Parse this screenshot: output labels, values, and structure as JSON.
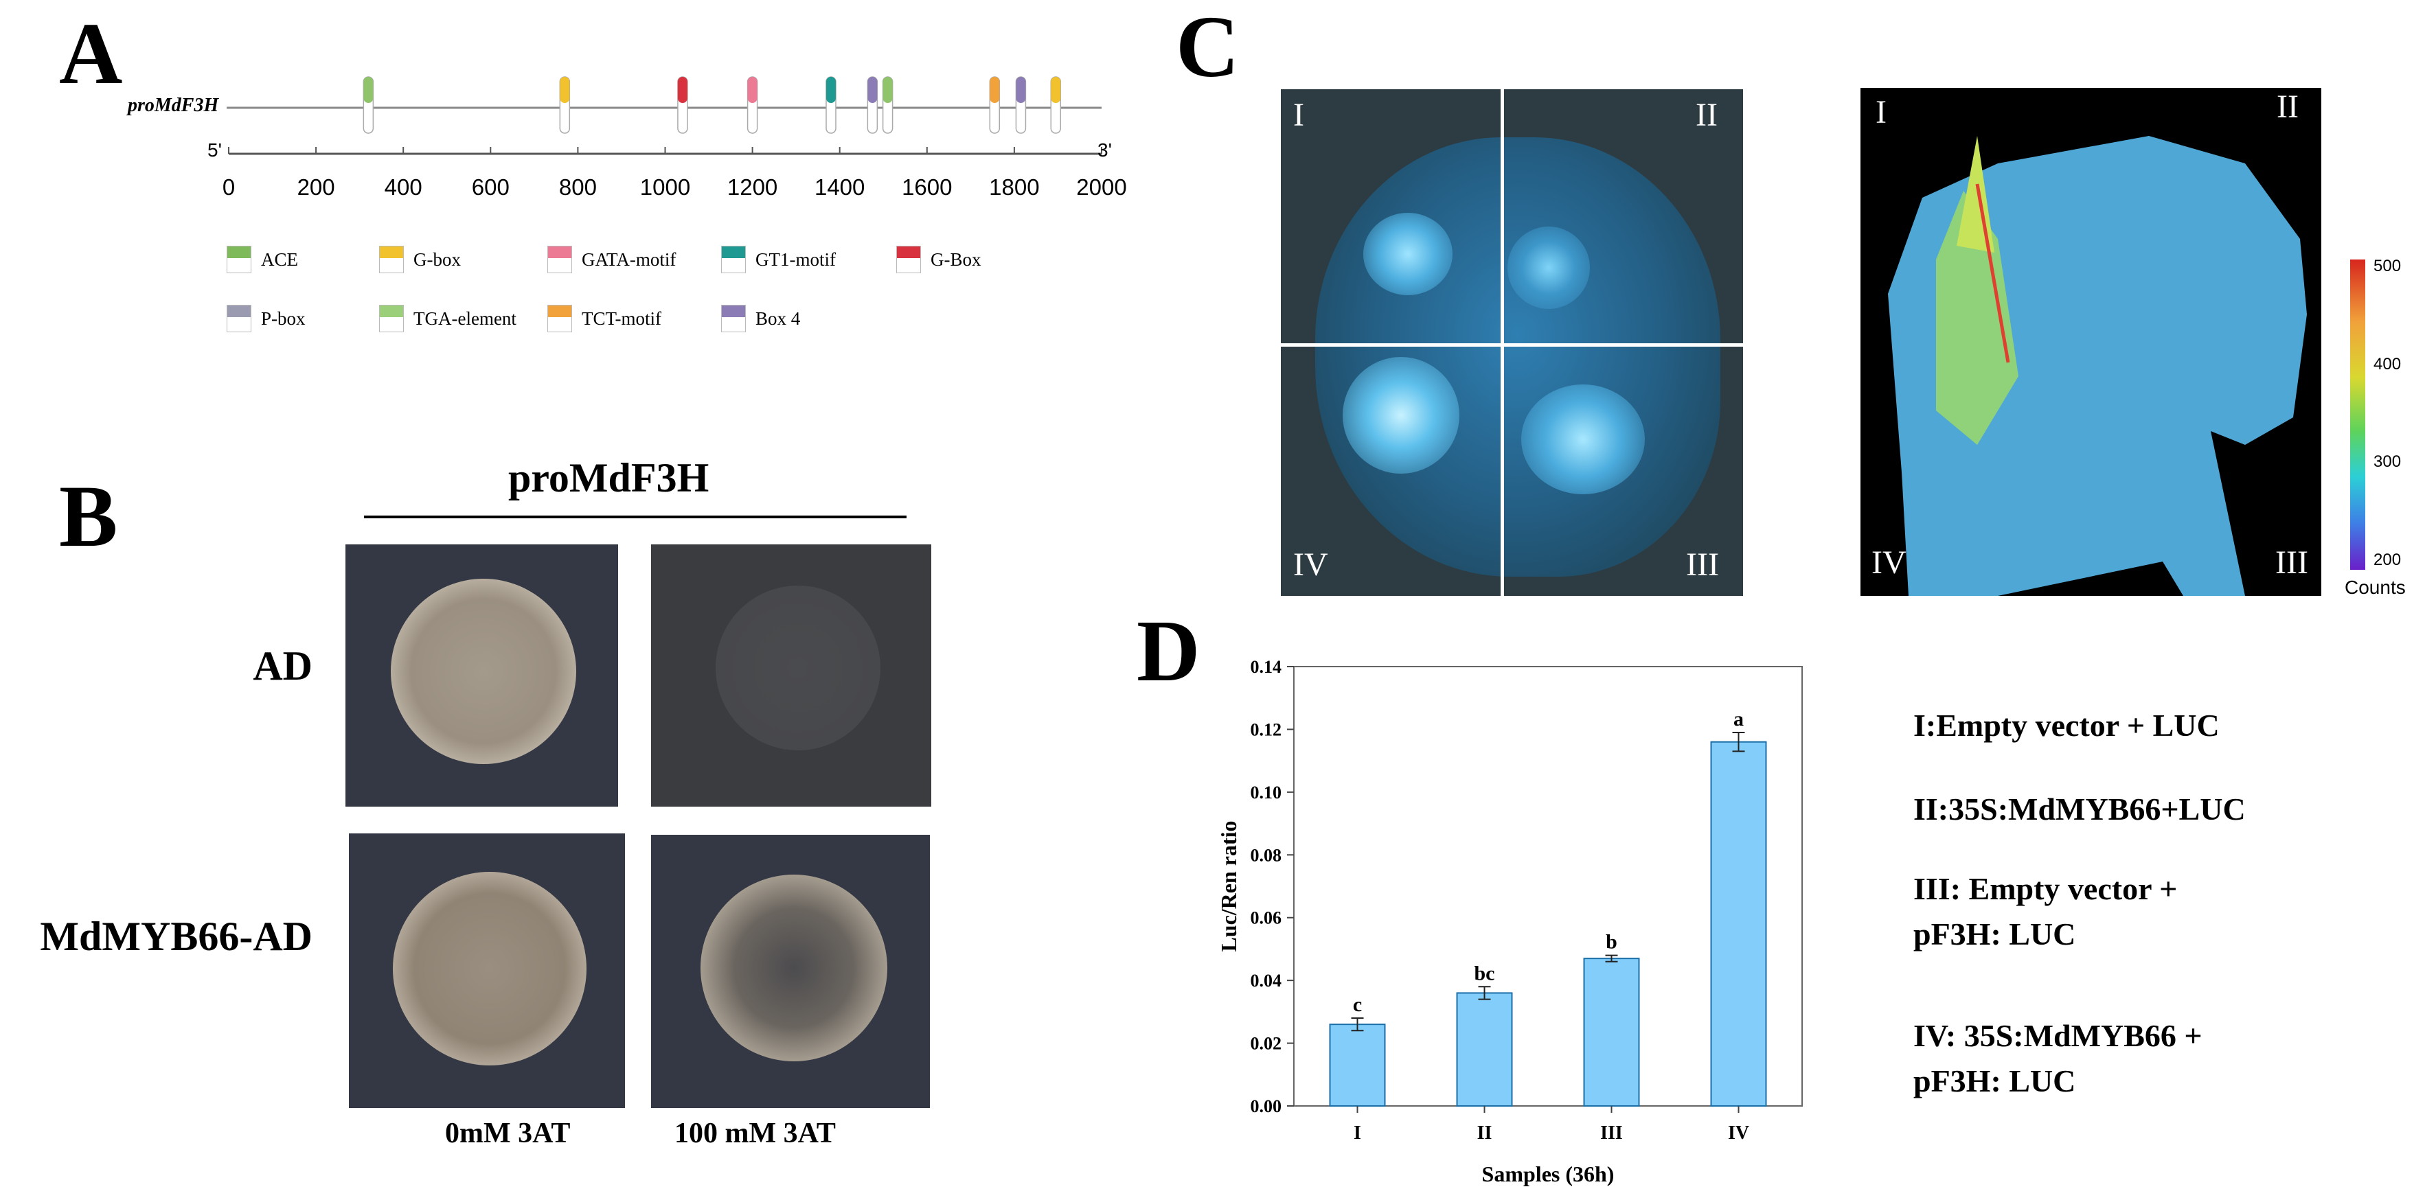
{
  "panels": {
    "a": "A",
    "b": "B",
    "c": "C",
    "d": "D"
  },
  "panel_a": {
    "gene_label": "proMdF3H",
    "end5": "5'",
    "end3": "3'",
    "axis_ticks": [
      "0",
      "200",
      "400",
      "600",
      "800",
      "1000",
      "1200",
      "1400",
      "1600",
      "1800",
      "2000"
    ],
    "elements": [
      {
        "type": "ACE",
        "pos": 320,
        "color": "#8fc46a"
      },
      {
        "type": "G-box",
        "pos": 770,
        "color": "#f2c12e"
      },
      {
        "type": "G-Box",
        "pos": 1040,
        "color": "#d9323f"
      },
      {
        "type": "GATA-motif",
        "pos": 1200,
        "color": "#ec7a95"
      },
      {
        "type": "GT1-motif",
        "pos": 1380,
        "color": "#1e9a92"
      },
      {
        "type": "Box 4",
        "pos": 1475,
        "color": "#8b7cb5"
      },
      {
        "type": "TGA-element",
        "pos": 1510,
        "color": "#8fc46a"
      },
      {
        "type": "TCT-motif",
        "pos": 1755,
        "color": "#f2a23a"
      },
      {
        "type": "Box 4",
        "pos": 1815,
        "color": "#8b7cb5"
      },
      {
        "type": "G-box",
        "pos": 1895,
        "color": "#f2c12e"
      }
    ],
    "legend": [
      {
        "label": "ACE",
        "color": "#7fba5a"
      },
      {
        "label": "G-box",
        "color": "#f2c12e"
      },
      {
        "label": "GATA-motif",
        "color": "#ec7a95"
      },
      {
        "label": "GT1-motif",
        "color": "#1e9a92"
      },
      {
        "label": "G-Box",
        "color": "#d9323f"
      },
      {
        "label": "P-box",
        "color": "#9a9ab0"
      },
      {
        "label": "TGA-element",
        "color": "#9ccf7a"
      },
      {
        "label": "TCT-motif",
        "color": "#f2a23a"
      },
      {
        "label": "Box 4",
        "color": "#8b7cb5"
      }
    ]
  },
  "panel_b": {
    "header": "proMdF3H",
    "rows": [
      "AD",
      "MdMYB66-AD"
    ],
    "treatments": [
      "0mM 3AT",
      "100 mM 3AT"
    ]
  },
  "panel_c": {
    "quadrants": [
      "I",
      "II",
      "III",
      "IV"
    ],
    "colorbar": {
      "ticks": [
        "500",
        "400",
        "300",
        "200"
      ],
      "label": "Counts"
    }
  },
  "chart_data": {
    "type": "bar",
    "categories": [
      "I",
      "II",
      "III",
      "IV"
    ],
    "values": [
      0.026,
      0.036,
      0.047,
      0.116
    ],
    "errors": [
      0.002,
      0.002,
      0.001,
      0.003
    ],
    "significance": [
      "c",
      "bc",
      "b",
      "a"
    ],
    "xlabel": "Samples (36h)",
    "ylabel": "Luc/Ren ratio",
    "ylim": [
      0,
      0.14
    ],
    "yticks": [
      "0.00",
      "0.02",
      "0.04",
      "0.06",
      "0.08",
      "0.10",
      "0.12",
      "0.14"
    ],
    "bar_color": "#82cdf9"
  },
  "panel_d_legend": {
    "i": "I:Empty vector + LUC",
    "ii": "II:35S:MdMYB66+LUC",
    "iii_1": "III: Empty vector +",
    "iii_2": "pF3H: LUC",
    "iv_1": "IV: 35S:MdMYB66 +",
    "iv_2": "pF3H: LUC"
  }
}
